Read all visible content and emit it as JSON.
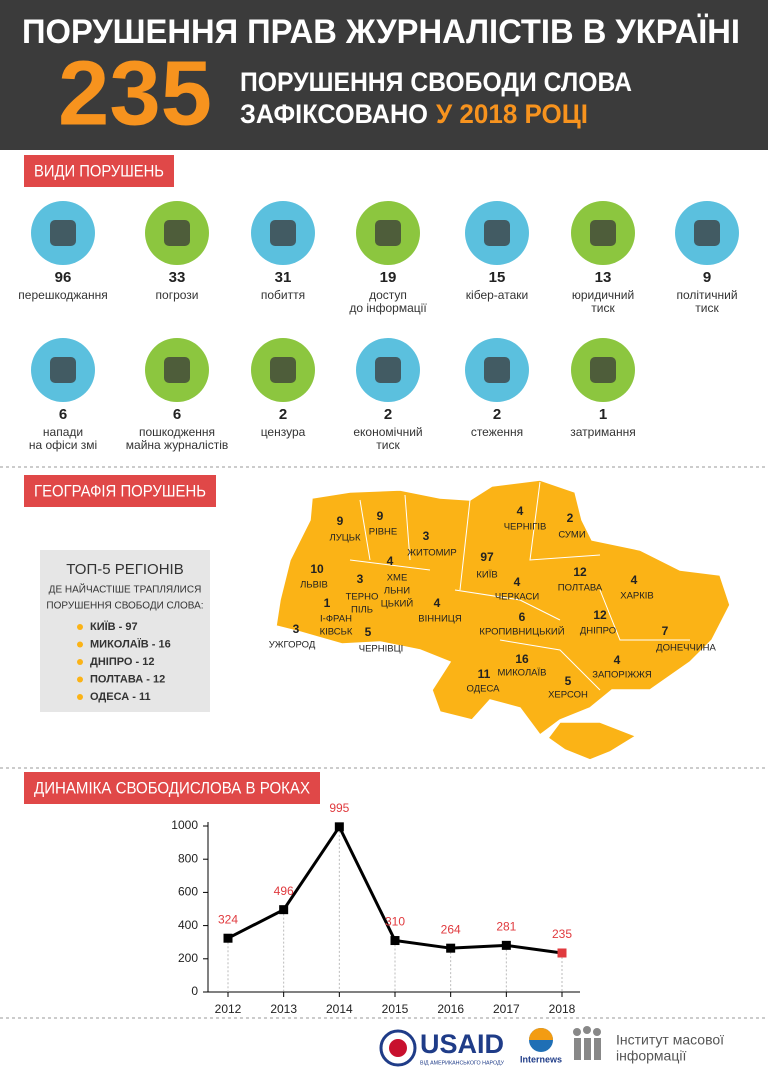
{
  "header": {
    "title": "ПОРУШЕННЯ ПРАВ ЖУРНАЛІСТІВ В УКРАЇНІ",
    "count": "235",
    "line1": "ПОРУШЕННЯ  СВОБОДИ СЛОВА",
    "line2a": "ЗАФІКСОВАНО",
    "line2b": "У 2018 РОЦІ"
  },
  "types": {
    "heading": "ВИДИ ПОРУШЕНЬ",
    "items": [
      {
        "count": "96",
        "lines": [
          "перешкоджання"
        ]
      },
      {
        "count": "33",
        "lines": [
          "погрози"
        ]
      },
      {
        "count": "31",
        "lines": [
          "побиття"
        ]
      },
      {
        "count": "19",
        "lines": [
          "доступ",
          "до інформації"
        ]
      },
      {
        "count": "15",
        "lines": [
          "кібер-атаки"
        ]
      },
      {
        "count": "13",
        "lines": [
          "юридичний",
          "тиск"
        ]
      },
      {
        "count": "9",
        "lines": [
          "політичний",
          "тиск"
        ]
      },
      {
        "count": "6",
        "lines": [
          "напади",
          "на офіси змі"
        ]
      },
      {
        "count": "6",
        "lines": [
          "пошкодження",
          "майна журналістів"
        ]
      },
      {
        "count": "2",
        "lines": [
          "цензура"
        ]
      },
      {
        "count": "2",
        "lines": [
          "економічний",
          "тиск"
        ]
      },
      {
        "count": "2",
        "lines": [
          "стеження"
        ]
      },
      {
        "count": "1",
        "lines": [
          "затримання"
        ]
      }
    ]
  },
  "geography": {
    "heading": "ГЕОГРАФІЯ ПОРУШЕНЬ",
    "top5": {
      "title": "ТОП-5 РЕГІОНІВ",
      "subtitle": [
        "ДЕ НАЙЧАСТІШЕ ТРАПЛЯЛИСЯ",
        "ПОРУШЕННЯ СВОБОДИ СЛОВА:"
      ],
      "items": [
        "КИЇВ - 97",
        "МИКОЛАЇВ - 16",
        "ДНІПРО - 12",
        "ПОЛТАВА - 12",
        "ОДЕСА - 11"
      ]
    },
    "regions": [
      {
        "count": "9",
        "lines": [
          "ЛУЦЬК"
        ]
      },
      {
        "count": "9",
        "lines": [
          "РІВНЕ"
        ]
      },
      {
        "count": "3",
        "lines": [
          "ЖИТОМИР"
        ]
      },
      {
        "count": "97",
        "lines": [
          "КИЇВ"
        ]
      },
      {
        "count": "4",
        "lines": [
          "ЧЕРНІГІВ"
        ]
      },
      {
        "count": "2",
        "lines": [
          "СУМИ"
        ]
      },
      {
        "count": "10",
        "lines": [
          "ЛЬВІВ"
        ]
      },
      {
        "count": "3",
        "lines": [
          "ТЕРНО",
          "ПІЛЬ"
        ]
      },
      {
        "count": "4",
        "lines": [
          "ХМЕ",
          "ЛЬНИ",
          "ЦЬКИЙ"
        ]
      },
      {
        "count": "4",
        "lines": [
          "ВІННИЦЯ"
        ]
      },
      {
        "count": "4",
        "lines": [
          "ЧЕРКАСИ"
        ]
      },
      {
        "count": "12",
        "lines": [
          "ПОЛТАВА"
        ]
      },
      {
        "count": "4",
        "lines": [
          "ХАРКІВ"
        ]
      },
      {
        "count": "1",
        "lines": [
          "І-ФРАН",
          "КІВСЬК"
        ]
      },
      {
        "count": "3",
        "lines": [
          "УЖГОРОД"
        ]
      },
      {
        "count": "5",
        "lines": [
          "ЧЕРНІВЦІ"
        ]
      },
      {
        "count": "6",
        "lines": [
          "КРОПИВНИЦЬКИЙ"
        ]
      },
      {
        "count": "12",
        "lines": [
          "ДНІПРО"
        ]
      },
      {
        "count": "7",
        "lines": [
          "ДОНЕЧЧИНА"
        ]
      },
      {
        "count": "11",
        "lines": [
          "ОДЕСА"
        ]
      },
      {
        "count": "16",
        "lines": [
          "МИКОЛАЇВ"
        ]
      },
      {
        "count": "4",
        "lines": [
          "ЗАПОРІЖЖЯ"
        ]
      },
      {
        "count": "5",
        "lines": [
          "ХЕРСОН"
        ]
      }
    ]
  },
  "dynamics": {
    "heading": "ДИНАМІКА СВОБОДИСЛОВА В РОКАХ"
  },
  "chart_data": {
    "type": "line",
    "categories": [
      "2012",
      "2013",
      "2014",
      "2015",
      "2016",
      "2017",
      "2018"
    ],
    "values": [
      324,
      496,
      995,
      310,
      264,
      281,
      235
    ],
    "color": "#000000",
    "label_color": "#e03a3e",
    "marker_colors": [
      "#000000",
      "#000000",
      "#000000",
      "#000000",
      "#000000",
      "#000000",
      "#e03a3e"
    ],
    "ylim": [
      0,
      1000
    ],
    "yticks": [
      0,
      200,
      400,
      600,
      800,
      1000
    ]
  },
  "footer": {
    "usaid": "USAID",
    "usaid_sub": "ВІД АМЕРИКАНСЬКОГО НАРОДУ",
    "internews": "Internews",
    "imi": [
      "Інститут масової",
      "інформації"
    ]
  }
}
